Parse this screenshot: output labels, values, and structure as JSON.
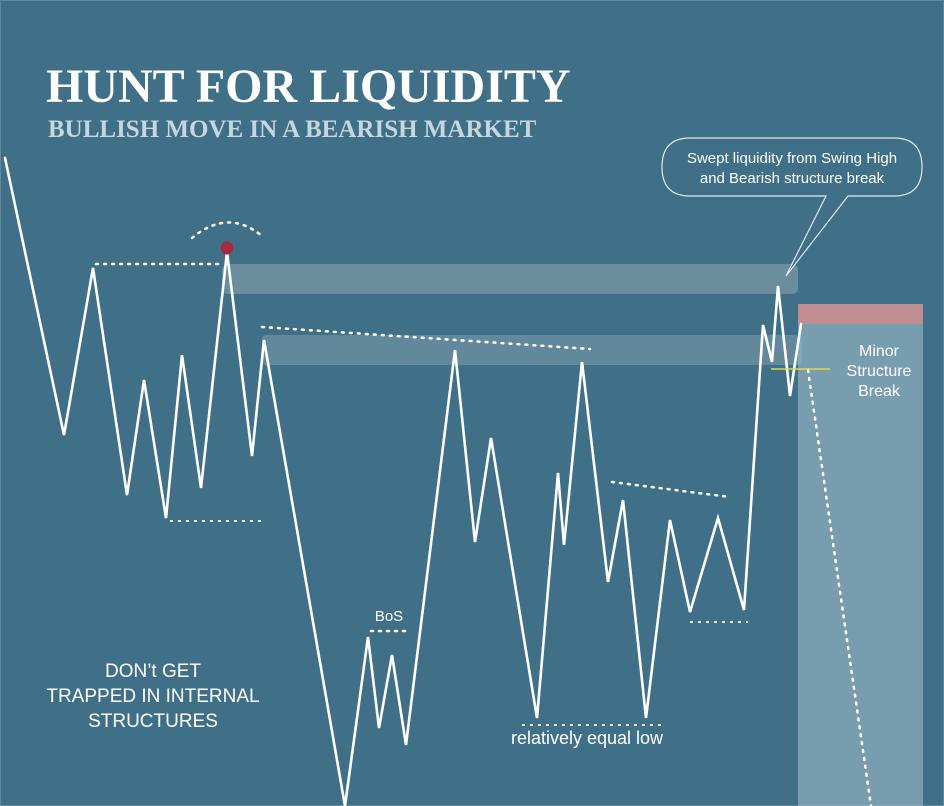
{
  "header": {
    "title": "HUNT FOR LIQUIDITY",
    "subtitle": "BULLISH MOVE IN A BEARISH MARKET"
  },
  "annotations": {
    "callout_line1": "Swept liquidity from Swing High",
    "callout_line2": "and Bearish structure break",
    "minor_line1": "Minor",
    "minor_line2": "Structure",
    "minor_line3": "Break",
    "bos": "BoS",
    "equal_low": "relatively equal low",
    "warning_line1": "DON’t GET",
    "warning_line2": "TRAPPED IN INTERNAL",
    "warning_line3": "STRUCTURES"
  },
  "colors": {
    "background": "#3f7088",
    "line": "#ffffff",
    "swing_high_marker": "#a52a3c",
    "liquidity_band": "#8fa8b3",
    "short_zone": "#9bbac6",
    "stop_zone": "#c08d93",
    "structure_break_line": "#e6d44a",
    "title_text": "#ffffff",
    "subtitle_text": "#c7d6de"
  }
}
